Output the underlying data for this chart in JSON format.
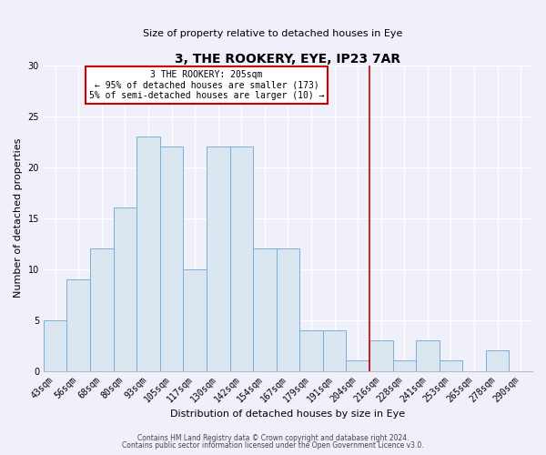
{
  "title": "3, THE ROOKERY, EYE, IP23 7AR",
  "subtitle": "Size of property relative to detached houses in Eye",
  "xlabel": "Distribution of detached houses by size in Eye",
  "ylabel": "Number of detached properties",
  "bar_color": "#dae6f0",
  "bar_edge_color": "#7aafd4",
  "categories": [
    "43sqm",
    "56sqm",
    "68sqm",
    "80sqm",
    "93sqm",
    "105sqm",
    "117sqm",
    "130sqm",
    "142sqm",
    "154sqm",
    "167sqm",
    "179sqm",
    "191sqm",
    "204sqm",
    "216sqm",
    "228sqm",
    "241sqm",
    "253sqm",
    "265sqm",
    "278sqm",
    "290sqm"
  ],
  "values": [
    5,
    9,
    12,
    16,
    23,
    22,
    10,
    22,
    22,
    12,
    12,
    4,
    4,
    1,
    3,
    1,
    3,
    1,
    0,
    2,
    0
  ],
  "ylim": [
    0,
    30
  ],
  "yticks": [
    0,
    5,
    10,
    15,
    20,
    25,
    30
  ],
  "vline_index": 13,
  "annotation_title": "3 THE ROOKERY: 205sqm",
  "annotation_line1": "← 95% of detached houses are smaller (173)",
  "annotation_line2": "5% of semi-detached houses are larger (10) →",
  "annotation_box_color": "#ffffff",
  "annotation_box_edge_color": "#cc0000",
  "vline_color": "#cc0000",
  "footer1": "Contains HM Land Registry data © Crown copyright and database right 2024.",
  "footer2": "Contains public sector information licensed under the Open Government Licence v3.0.",
  "background_color": "#f0f0fa",
  "grid_color": "#ffffff",
  "title_fontsize": 10,
  "subtitle_fontsize": 8,
  "axis_label_fontsize": 8,
  "tick_fontsize": 7,
  "annotation_fontsize": 7,
  "footer_fontsize": 5.5
}
